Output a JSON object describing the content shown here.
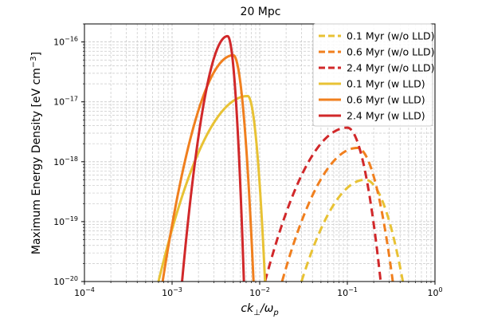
{
  "chart_data": {
    "type": "line",
    "title": "20 Mpc",
    "xlabel": "ck⊥/ωp",
    "ylabel": "Maximum Energy Density [eV cm⁻³]",
    "xscale": "log",
    "yscale": "log",
    "xlim": [
      0.0001,
      1
    ],
    "ylim": [
      1e-20,
      2e-16
    ],
    "grid": true,
    "legend_position": "top-right",
    "x_ticks": [
      {
        "value": 0.0001,
        "base": "10",
        "exp": "−4"
      },
      {
        "value": 0.001,
        "base": "10",
        "exp": "−3"
      },
      {
        "value": 0.01,
        "base": "10",
        "exp": "−2"
      },
      {
        "value": 0.1,
        "base": "10",
        "exp": "−1"
      },
      {
        "value": 1,
        "base": "10",
        "exp": "0"
      }
    ],
    "y_ticks": [
      {
        "value": 1e-20,
        "base": "10",
        "exp": "−20"
      },
      {
        "value": 1e-19,
        "base": "10",
        "exp": "−19"
      },
      {
        "value": 1e-18,
        "base": "10",
        "exp": "−18"
      },
      {
        "value": 1e-17,
        "base": "10",
        "exp": "−17"
      },
      {
        "value": 1e-16,
        "base": "10",
        "exp": "−16"
      }
    ],
    "series": [
      {
        "name": "0.1 Myr (w/o LLD)",
        "color": "#e8c234",
        "dash": true,
        "peak_x": 0.16,
        "peak_y": 5e-19,
        "x_start": 0.03,
        "x_end": 0.43
      },
      {
        "name": "0.6 Myr (w/o LLD)",
        "color": "#f07f1e",
        "dash": true,
        "peak_x": 0.13,
        "peak_y": 1.7e-18,
        "x_start": 0.018,
        "x_end": 0.33
      },
      {
        "name": "2.4 Myr (w/o LLD)",
        "color": "#d1282a",
        "dash": true,
        "peak_x": 0.1,
        "peak_y": 3.7e-18,
        "x_start": 0.0115,
        "x_end": 0.24
      },
      {
        "name": "0.1 Myr (w LLD)",
        "color": "#e8c234",
        "dash": false,
        "peak_x": 0.0073,
        "peak_y": 1.25e-17,
        "x_start": 0.0007,
        "x_end": 0.0115
      },
      {
        "name": "0.6 Myr (w LLD)",
        "color": "#f07f1e",
        "dash": false,
        "peak_x": 0.005,
        "peak_y": 6e-17,
        "x_start": 0.00078,
        "x_end": 0.0085
      },
      {
        "name": "2.4 Myr (w LLD)",
        "color": "#d1282a",
        "dash": false,
        "peak_x": 0.0043,
        "peak_y": 1.25e-16,
        "x_start": 0.0013,
        "x_end": 0.0066
      }
    ]
  }
}
